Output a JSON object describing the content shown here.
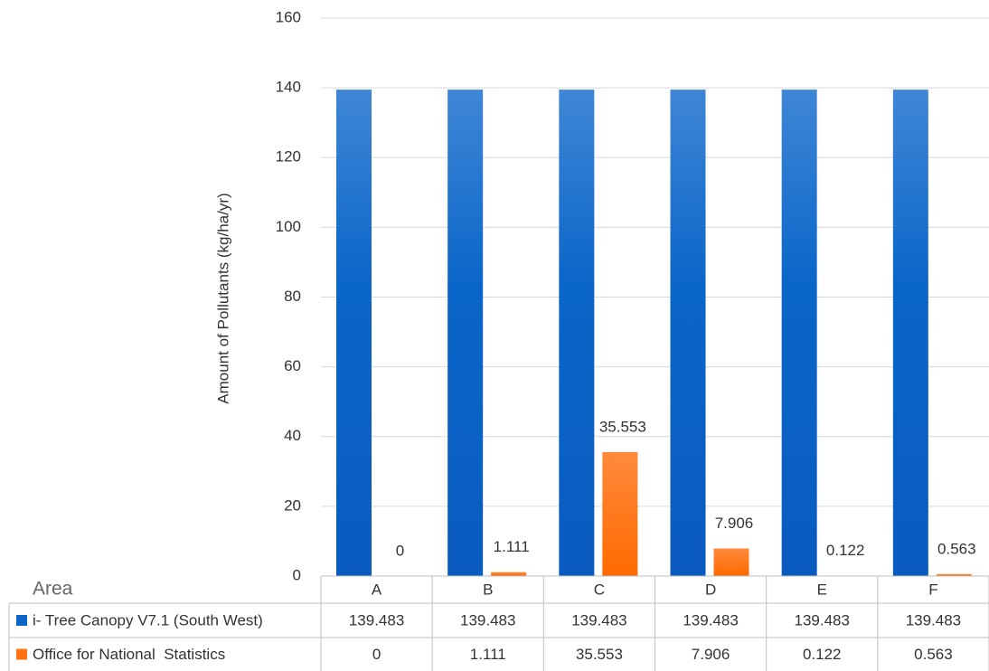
{
  "chart_data": {
    "type": "bar",
    "y_label": "Amount of Pollutants (kg/ha/yr)",
    "x_label": "Area",
    "categories": [
      "A",
      "B",
      "C",
      "D",
      "E",
      "F"
    ],
    "series": [
      {
        "name": "i- Tree Canopy V7.1 (South West)",
        "color": "#0a66c8",
        "values": [
          139.483,
          139.483,
          139.483,
          139.483,
          139.483,
          139.483
        ]
      },
      {
        "name": "Office for National  Statistics",
        "color": "#ff7212",
        "values": [
          0,
          1.111,
          35.553,
          7.906,
          0.122,
          0.563
        ]
      }
    ],
    "ylim": [
      0,
      160
    ],
    "yticks": [
      0,
      20,
      40,
      60,
      80,
      100,
      120,
      140,
      160
    ],
    "grid": true,
    "data_labels_series": 1,
    "data_table": true
  }
}
